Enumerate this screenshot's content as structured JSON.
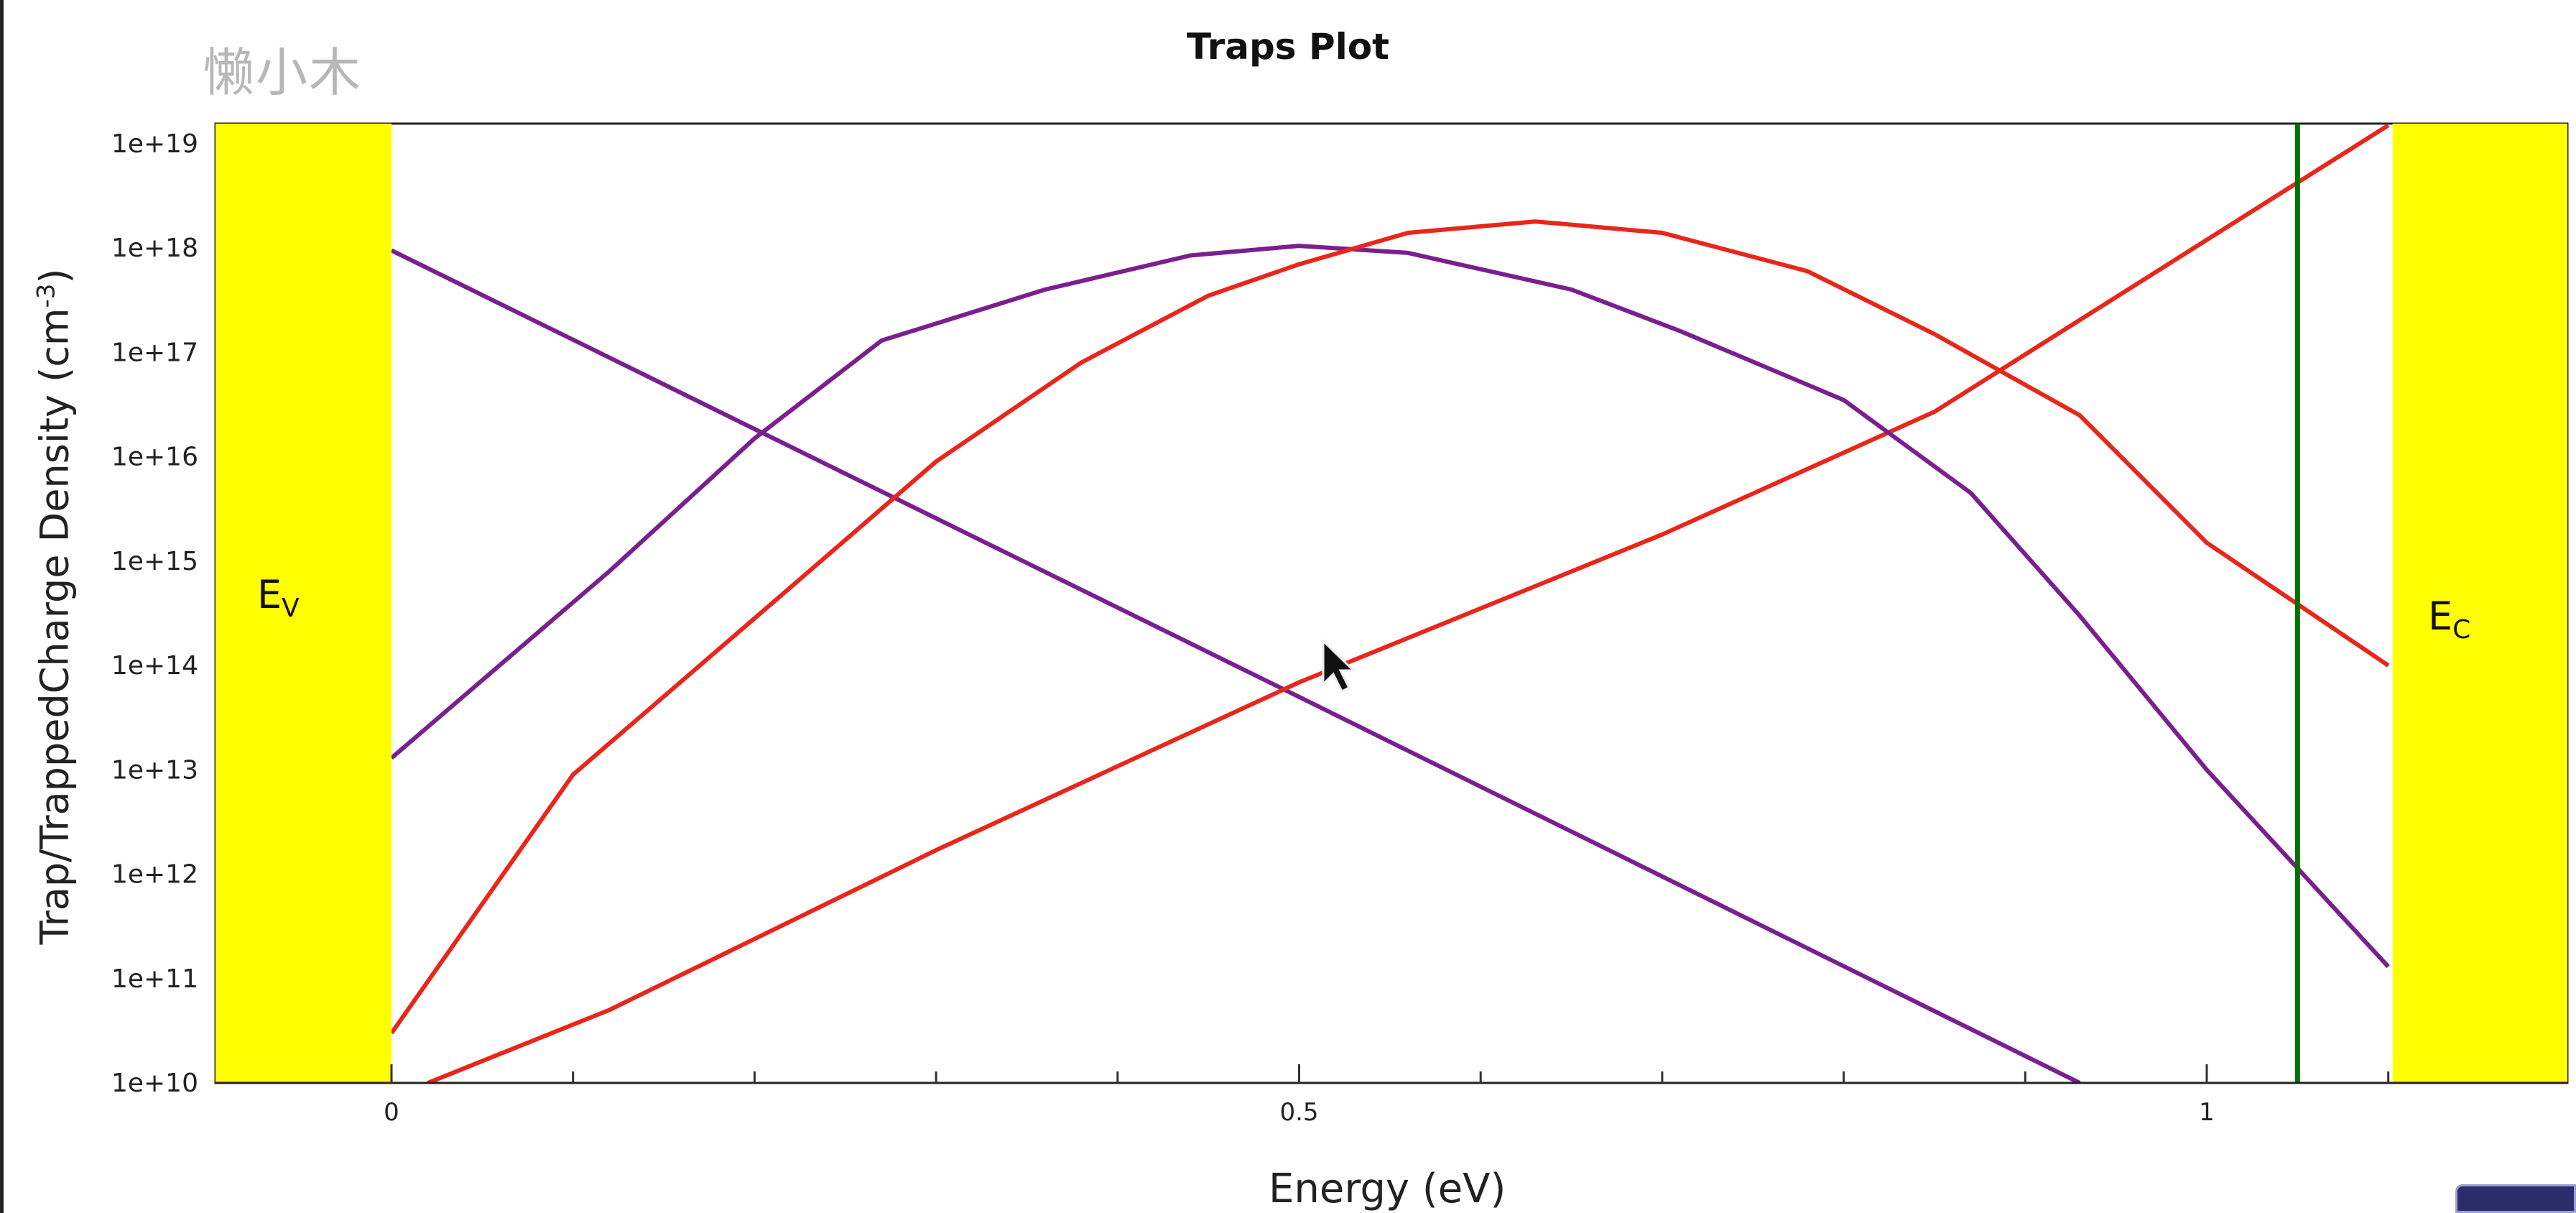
{
  "watermark": "懒小木",
  "chart_data": {
    "type": "line",
    "title": "Traps Plot",
    "xlabel": "Energy (eV)",
    "ylabel": "Trap/TrappedCharge Density (cm",
    "ylabel_sup": "-3",
    "ylabel_end": ")",
    "xlim": [
      0,
      1.1
    ],
    "ylim": [
      10000000000.0,
      1e+19
    ],
    "yscale": "log",
    "x_ticks": [
      0,
      0.5,
      1
    ],
    "x_tick_labels": [
      "0",
      "0.5",
      "1"
    ],
    "y_ticks": [
      10000000000.0,
      100000000000.0,
      1000000000000.0,
      10000000000000.0,
      100000000000000.0,
      1000000000000000.0,
      1e+16,
      1e+17,
      1e+18,
      1e+19
    ],
    "y_tick_labels": [
      "1e+10",
      "1e+11",
      "1e+12",
      "1e+13",
      "1e+14",
      "1e+15",
      "1e+16",
      "1e+17",
      "1e+18",
      "1e+19"
    ],
    "bands": [
      {
        "label_main": "E",
        "label_sub": "V",
        "color": "#ffff00",
        "side": "left"
      },
      {
        "label_main": "E",
        "label_sub": "C",
        "color": "#ffff00",
        "side": "right"
      }
    ],
    "vline": {
      "x": 1.05,
      "color": "#007000"
    },
    "series": [
      {
        "color": "#7a1f8f",
        "x": [
          0,
          0.5,
          0.93
        ],
        "y": [
          9.5e+17,
          50000000000000.0,
          10000000000.0
        ]
      },
      {
        "color": "#e8261b",
        "x": [
          0.02,
          0.12,
          0.3,
          0.5,
          0.7,
          0.85,
          1.1
        ],
        "y": [
          10000000000.0,
          50000000000.0,
          1700000000000.0,
          69000000000000.0,
          1800000000000000.0,
          2.7e+16,
          1.5e+19
        ]
      },
      {
        "color": "#7a1f8f",
        "x": [
          0,
          0.12,
          0.2,
          0.27,
          0.36,
          0.44,
          0.5,
          0.56,
          0.65,
          0.71,
          0.8,
          0.87,
          0.93,
          1.0,
          1.1
        ],
        "y": [
          13000000000000.0,
          800000000000000.0,
          1.5e+16,
          1.3e+17,
          4e+17,
          8.5e+17,
          1.05e+18,
          9e+17,
          4e+17,
          1.6e+17,
          3.5e+16,
          4500000000000000.0,
          300000000000000.0,
          10000000000000.0,
          130000000000.0
        ]
      },
      {
        "color": "#e8261b",
        "x": [
          0,
          0.1,
          0.21,
          0.3,
          0.38,
          0.45,
          0.5,
          0.56,
          0.63,
          0.7,
          0.78,
          0.85,
          0.93,
          1.0,
          1.1
        ],
        "y": [
          30000000000.0,
          9000000000000.0,
          400000000000000.0,
          9000000000000000.0,
          8e+16,
          3.5e+17,
          7e+17,
          1.4e+18,
          1.8e+18,
          1.4e+18,
          6e+17,
          1.5e+17,
          2.5e+16,
          1500000000000000.0,
          100000000000000.0
        ]
      }
    ]
  }
}
